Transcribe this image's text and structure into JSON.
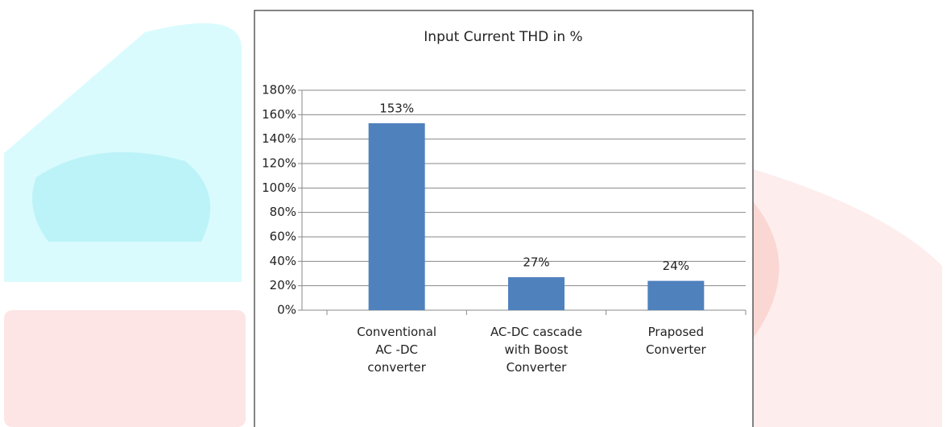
{
  "chart_data": {
    "type": "bar",
    "title": "Input Current THD in  %",
    "categories": [
      "Conventional\nAC -DC\nconverter",
      "AC-DC  cascade\nwith Boost\nConverter",
      "Praposed\nConverter"
    ],
    "values": [
      153,
      27,
      24
    ],
    "value_labels": [
      "153%",
      "27%",
      "24%"
    ],
    "color": "#4f81bd",
    "ylim": [
      0,
      180
    ],
    "yticks": [
      {
        "value": 0,
        "label": "0%"
      },
      {
        "value": 20,
        "label": "20%"
      },
      {
        "value": 40,
        "label": "40%"
      },
      {
        "value": 60,
        "label": "60%"
      },
      {
        "value": 80,
        "label": "80%"
      },
      {
        "value": 100,
        "label": "100%"
      },
      {
        "value": 120,
        "label": "120%"
      },
      {
        "value": 140,
        "label": "140%"
      },
      {
        "value": 160,
        "label": "160%"
      },
      {
        "value": 180,
        "label": "180%"
      }
    ],
    "grid": true
  }
}
